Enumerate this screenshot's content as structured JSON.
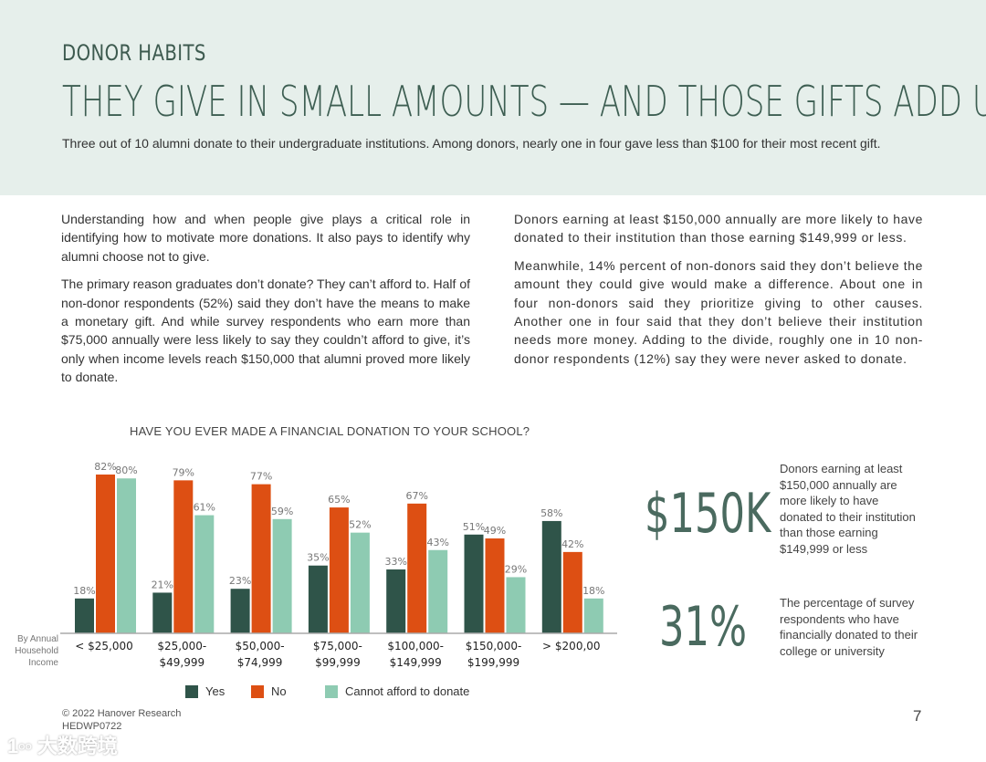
{
  "header": {
    "kicker": "DONOR HABITS",
    "title": "THEY GIVE IN SMALL AMOUNTS — AND THOSE GIFTS ADD UP",
    "subtitle": "Three out of 10 alumni donate to their undergraduate institutions. Among donors, nearly one in four gave less than $100 for their most recent gift."
  },
  "body": {
    "left": [
      "Understanding how and when people give plays a critical role in identifying how to motivate more donations. It also pays to identify why alumni choose not to give.",
      "The primary reason graduates don’t donate? They can’t afford to. Half of non-donor respondents (52%) said they don’t have the means to make a monetary gift. And while survey respondents who earn more than $75,000 annually were less likely to say they couldn’t afford to give, it’s only when income levels reach $150,000 that alumni proved more likely to donate."
    ],
    "right": [
      "Donors earning at least $150,000 annually are more likely to have donated to their institution than those earning $149,999 or less.",
      "Meanwhile, 14% percent of non-donors said they don’t believe the amount they could give would make a difference. About one in four non-donors said they prioritize giving to other causes. Another one in four said that they don’t believe their institution needs more money. Adding to the divide, roughly one in 10 non-donor respondents (12%) say they were never asked to donate."
    ]
  },
  "chart_data": {
    "type": "bar",
    "title": "HAVE YOU EVER MADE A FINANCIAL DONATION TO YOUR SCHOOL?",
    "xlabel": "By Annual Household Income",
    "ylabel": "",
    "ylim": [
      0,
      85
    ],
    "grid": false,
    "legend_position": "bottom",
    "categories": [
      [
        "< $25,000",
        ""
      ],
      [
        "$25,000-",
        "$49,999"
      ],
      [
        "$50,000-",
        "$74,999"
      ],
      [
        "$75,000-",
        "$99,999"
      ],
      [
        "$100,000-",
        "$149,999"
      ],
      [
        "$150,000-",
        "$199,999"
      ],
      [
        "> $200,00",
        ""
      ]
    ],
    "series": [
      {
        "name": "Yes",
        "color": "#2f5449",
        "values": [
          18,
          21,
          23,
          35,
          33,
          51,
          58
        ]
      },
      {
        "name": "No",
        "color": "#dd4f13",
        "values": [
          82,
          79,
          77,
          65,
          67,
          49,
          42
        ]
      },
      {
        "name": "Cannot afford to donate",
        "color": "#8ecbb2",
        "values": [
          80,
          61,
          59,
          52,
          43,
          29,
          18
        ]
      }
    ]
  },
  "stats": [
    {
      "value": "$150K",
      "text": "Donors earning at least $150,000 annually are more likely to have donated to their institution than those earning $149,999 or less"
    },
    {
      "value": "31%",
      "text": "The percentage of survey respondents who have financially donated to their college or university"
    }
  ],
  "footer": {
    "copyright": "© 2022 Hanover Research",
    "code": "HEDWP0722",
    "page": "7",
    "watermark": "大数跨境"
  }
}
